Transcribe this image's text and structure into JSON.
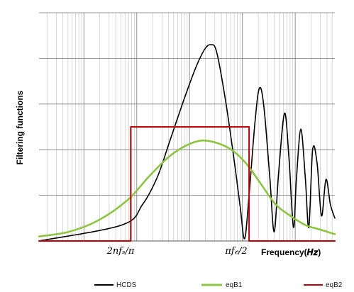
{
  "chart_data": {
    "type": "line",
    "title": "",
    "ylabel": "Filtering functions",
    "xlabel": "Frequency(𝑯𝒛)",
    "x_scale": "log",
    "x_tick_labels": [
      "2nfₛ/π",
      "πf𝒸/2"
    ],
    "grid": true,
    "legend_position": "bottom",
    "series": [
      {
        "name": "HCDS",
        "color": "#000000",
        "points": [
          [
            0.0,
            0.0
          ],
          [
            0.28,
            0.07
          ],
          [
            0.35,
            0.16
          ],
          [
            0.4,
            0.28
          ],
          [
            0.44,
            0.43
          ],
          [
            0.49,
            0.62
          ],
          [
            0.53,
            0.76
          ],
          [
            0.56,
            0.84
          ],
          [
            0.58,
            0.86
          ],
          [
            0.6,
            0.83
          ],
          [
            0.63,
            0.62
          ],
          [
            0.66,
            0.35
          ],
          [
            0.68,
            0.15
          ],
          [
            0.695,
            0.01
          ],
          [
            0.71,
            0.2
          ],
          [
            0.73,
            0.52
          ],
          [
            0.745,
            0.67
          ],
          [
            0.76,
            0.59
          ],
          [
            0.78,
            0.28
          ],
          [
            0.795,
            0.04
          ],
          [
            0.81,
            0.3
          ],
          [
            0.83,
            0.56
          ],
          [
            0.845,
            0.36
          ],
          [
            0.86,
            0.06
          ],
          [
            0.87,
            0.27
          ],
          [
            0.885,
            0.49
          ],
          [
            0.9,
            0.28
          ],
          [
            0.912,
            0.06
          ],
          [
            0.925,
            0.4
          ],
          [
            0.94,
            0.34
          ],
          [
            0.955,
            0.11
          ],
          [
            0.97,
            0.27
          ],
          [
            0.985,
            0.16
          ],
          [
            1.0,
            0.1
          ]
        ]
      },
      {
        "name": "eqB1",
        "color": "#8cc63f",
        "points": [
          [
            0.0,
            0.02
          ],
          [
            0.1,
            0.04
          ],
          [
            0.2,
            0.09
          ],
          [
            0.3,
            0.18
          ],
          [
            0.37,
            0.28
          ],
          [
            0.44,
            0.37
          ],
          [
            0.5,
            0.42
          ],
          [
            0.55,
            0.44
          ],
          [
            0.6,
            0.43
          ],
          [
            0.65,
            0.4
          ],
          [
            0.7,
            0.34
          ],
          [
            0.75,
            0.25
          ],
          [
            0.8,
            0.16
          ],
          [
            0.85,
            0.11
          ],
          [
            0.9,
            0.07
          ],
          [
            0.95,
            0.05
          ],
          [
            1.0,
            0.03
          ]
        ]
      },
      {
        "name": "eqB2",
        "color": "#c00000",
        "points": [
          [
            0.0,
            0.0
          ],
          [
            0.31,
            0.0
          ],
          [
            0.31,
            0.5
          ],
          [
            0.71,
            0.5
          ],
          [
            0.71,
            0.0
          ],
          [
            1.0,
            0.0
          ]
        ]
      }
    ]
  }
}
